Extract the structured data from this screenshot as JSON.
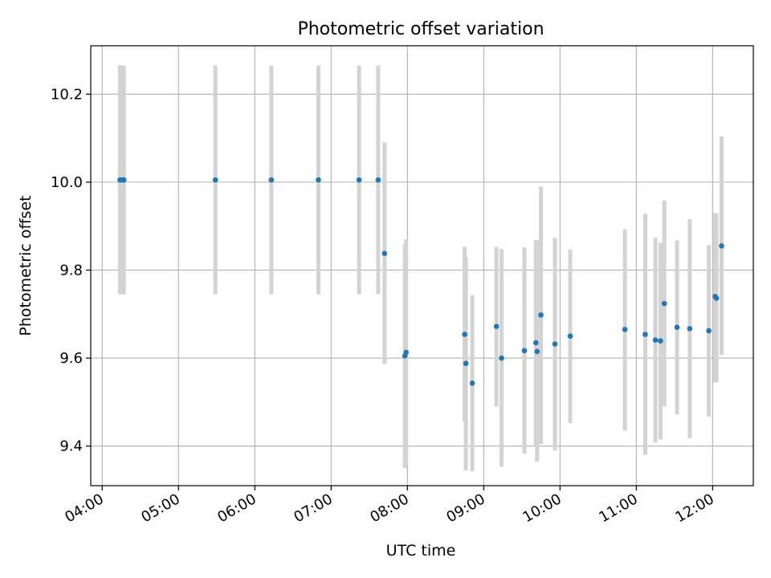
{
  "chart_data": {
    "type": "scatter",
    "title": "Photometric offset variation",
    "xlabel": "UTC time",
    "ylabel": "Photometric offset",
    "x_tick_labels": [
      "04:00",
      "05:00",
      "06:00",
      "07:00",
      "08:00",
      "09:00",
      "10:00",
      "11:00",
      "12:00"
    ],
    "y_tick_labels": [
      "9.4",
      "9.6",
      "9.8",
      "10.0",
      "10.2"
    ],
    "y_ticks": [
      9.4,
      9.6,
      9.8,
      10.0,
      10.2
    ],
    "x_ticks_minutes": [
      240,
      300,
      360,
      420,
      480,
      540,
      600,
      660,
      720
    ],
    "xlim": [
      "03:51",
      "12:32"
    ],
    "ylim": [
      9.31,
      10.31
    ],
    "grid": true,
    "colors": {
      "point": "#1f77b4",
      "errorbar": "#d3d3d3",
      "grid": "#b0b0b0"
    },
    "points": [
      {
        "x": "04:14",
        "y": 10.005,
        "low": 9.745,
        "high": 10.265
      },
      {
        "x": "04:16",
        "y": 10.005,
        "low": 9.745,
        "high": 10.265
      },
      {
        "x": "04:17",
        "y": 10.005,
        "low": 9.745,
        "high": 10.265
      },
      {
        "x": "05:29",
        "y": 10.005,
        "low": 9.745,
        "high": 10.265
      },
      {
        "x": "06:13",
        "y": 10.005,
        "low": 9.745,
        "high": 10.265
      },
      {
        "x": "06:50",
        "y": 10.005,
        "low": 9.745,
        "high": 10.265
      },
      {
        "x": "07:22",
        "y": 10.005,
        "low": 9.745,
        "high": 10.265
      },
      {
        "x": "07:37",
        "y": 10.005,
        "low": 9.745,
        "high": 10.265
      },
      {
        "x": "07:42",
        "y": 9.838,
        "low": 9.587,
        "high": 10.09
      },
      {
        "x": "07:58",
        "y": 9.605,
        "low": 9.35,
        "high": 9.86
      },
      {
        "x": "07:59",
        "y": 9.613,
        "low": 9.355,
        "high": 9.87
      },
      {
        "x": "08:45",
        "y": 9.654,
        "low": 9.455,
        "high": 9.853
      },
      {
        "x": "08:46",
        "y": 9.588,
        "low": 9.345,
        "high": 9.83
      },
      {
        "x": "08:51",
        "y": 9.543,
        "low": 9.343,
        "high": 9.743
      },
      {
        "x": "09:10",
        "y": 9.672,
        "low": 9.49,
        "high": 9.853
      },
      {
        "x": "09:14",
        "y": 9.6,
        "low": 9.353,
        "high": 9.848
      },
      {
        "x": "09:32",
        "y": 9.617,
        "low": 9.383,
        "high": 9.852
      },
      {
        "x": "09:41",
        "y": 9.635,
        "low": 9.4,
        "high": 9.868
      },
      {
        "x": "09:42",
        "y": 9.615,
        "low": 9.365,
        "high": 9.868
      },
      {
        "x": "09:45",
        "y": 9.698,
        "low": 9.405,
        "high": 9.99
      },
      {
        "x": "09:56",
        "y": 9.632,
        "low": 9.39,
        "high": 9.873
      },
      {
        "x": "10:08",
        "y": 9.65,
        "low": 9.452,
        "high": 9.847
      },
      {
        "x": "10:51",
        "y": 9.665,
        "low": 9.435,
        "high": 9.893
      },
      {
        "x": "11:07",
        "y": 9.654,
        "low": 9.38,
        "high": 9.928
      },
      {
        "x": "11:15",
        "y": 9.641,
        "low": 9.408,
        "high": 9.874
      },
      {
        "x": "11:19",
        "y": 9.639,
        "low": 9.415,
        "high": 9.862
      },
      {
        "x": "11:22",
        "y": 9.724,
        "low": 9.49,
        "high": 9.958
      },
      {
        "x": "11:32",
        "y": 9.67,
        "low": 9.472,
        "high": 9.868
      },
      {
        "x": "11:42",
        "y": 9.667,
        "low": 9.418,
        "high": 9.916
      },
      {
        "x": "11:57",
        "y": 9.662,
        "low": 9.467,
        "high": 9.857
      },
      {
        "x": "12:02",
        "y": 9.74,
        "low": 9.545,
        "high": 9.93
      },
      {
        "x": "12:03",
        "y": 9.736,
        "low": 9.545,
        "high": 9.928
      },
      {
        "x": "12:07",
        "y": 9.855,
        "low": 9.607,
        "high": 10.104
      }
    ]
  }
}
